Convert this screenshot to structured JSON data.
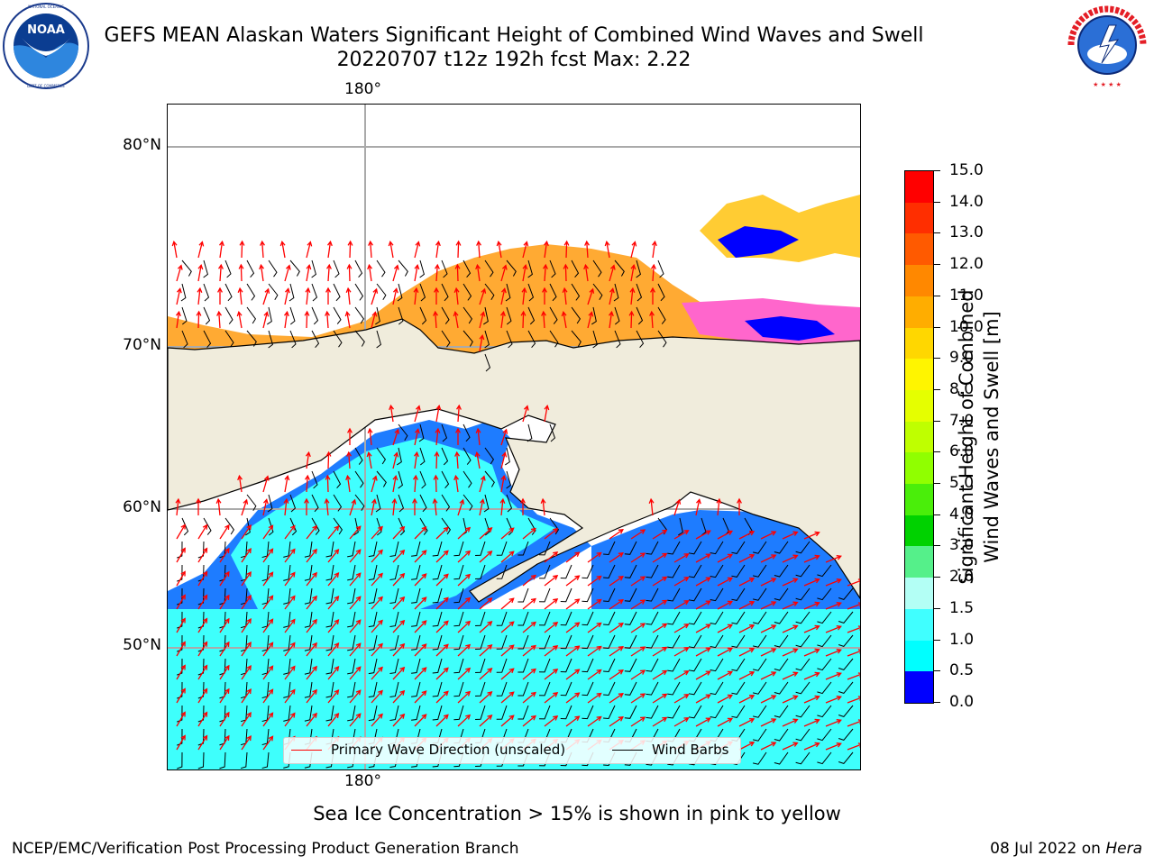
{
  "header": {
    "title_line1": "GEFS MEAN Alaskan Waters Significant Height of Combined Wind Waves and Swell",
    "title_line2": "20220707 t12z 192h fcst   Max: 2.22"
  },
  "logos": {
    "left": {
      "name": "NOAA",
      "ring_text": "NATIONAL OCEANIC AND ATMOSPHERIC ADMINISTRATION · U.S. DEPARTMENT OF COMMERCE"
    },
    "right": {
      "name": "NATIONAL WEATHER SERVICE"
    }
  },
  "map": {
    "lon_label_top": "180°",
    "lon_label_bottom": "180°",
    "lat_labels": [
      "80°N",
      "70°N",
      "60°N",
      "50°N"
    ],
    "colors": {
      "land": "#f0ecdc",
      "wave_0_0_5": "#0000ff",
      "wave_0_5_1_0": "#1e7cff",
      "wave_1_0_1_5": "#00ffff",
      "wave_1_5_2_0": "#40ffff",
      "wave_2_0_3_0": "#b3fff5",
      "ice_pink": "#ff66cc",
      "ice_orange": "#ffaa33",
      "ice_yellow": "#ffcc33",
      "primary_wave_arrow": "#ff0000",
      "wind_barb": "#000000",
      "grid": "#aaaaaa"
    }
  },
  "legend": {
    "primary_wave": "Primary Wave Direction (unscaled)",
    "wind_barbs": "Wind Barbs"
  },
  "colorbar": {
    "title_line1": "Significant Height of Combined",
    "title_line2": "Wind Waves and Swell [m]",
    "ticks": [
      "15.0",
      "14.0",
      "13.0",
      "12.0",
      "11.0",
      "10.0",
      "9.0",
      "8.0",
      "7.0",
      "6.0",
      "5.0",
      "4.0",
      "3.0",
      "2.0",
      "1.5",
      "1.0",
      "0.5",
      "0.0"
    ],
    "colors": [
      "#ff0000",
      "#ff2e00",
      "#ff5a00",
      "#ff8800",
      "#ffad00",
      "#ffd700",
      "#fff500",
      "#e5ff00",
      "#bfff00",
      "#90ff00",
      "#4aee0a",
      "#00d200",
      "#55f08a",
      "#b3fff5",
      "#40ffff",
      "#00ffff",
      "#1e7cff",
      "#0000ff"
    ]
  },
  "notes": {
    "sea_ice": "Sea Ice Concentration > 15% is shown in pink to yellow"
  },
  "footer": {
    "left": "NCEP/EMC/Verification Post Processing Product Generation Branch",
    "right_date": "08 Jul 2022 on",
    "right_host": "Hera"
  }
}
